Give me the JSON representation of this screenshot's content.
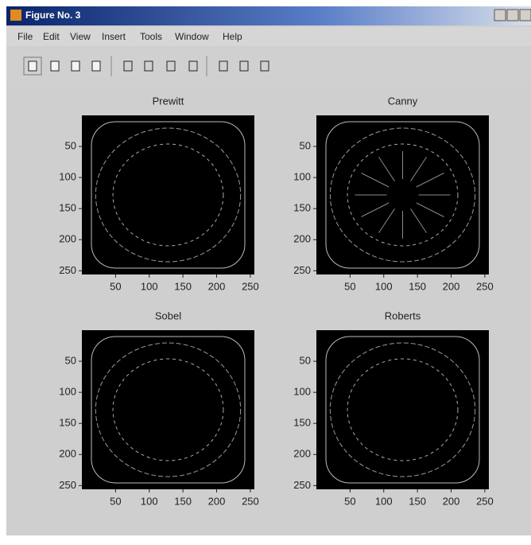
{
  "window": {
    "title": "Figure No. 3"
  },
  "menu": [
    "File",
    "Edit",
    "View",
    "Insert",
    "Tools",
    "Window",
    "Help"
  ],
  "subplots": [
    {
      "title": "Prewitt",
      "xlim": [
        0,
        256
      ],
      "ylim": [
        256,
        0
      ],
      "xticks": [
        50,
        100,
        150,
        200,
        250
      ],
      "yticks": [
        50,
        100,
        150,
        200,
        250
      ]
    },
    {
      "title": "Canny",
      "xlim": [
        0,
        256
      ],
      "ylim": [
        256,
        0
      ],
      "xticks": [
        50,
        100,
        150,
        200,
        250
      ],
      "yticks": [
        50,
        100,
        150,
        200,
        250
      ]
    },
    {
      "title": "Sobel",
      "xlim": [
        0,
        256
      ],
      "ylim": [
        256,
        0
      ],
      "xticks": [
        50,
        100,
        150,
        200,
        250
      ],
      "yticks": [
        50,
        100,
        150,
        200,
        250
      ]
    },
    {
      "title": "Roberts",
      "xlim": [
        0,
        256
      ],
      "ylim": [
        256,
        0
      ],
      "xticks": [
        50,
        100,
        150,
        200,
        250
      ],
      "yticks": [
        50,
        100,
        150,
        200,
        250
      ]
    }
  ]
}
